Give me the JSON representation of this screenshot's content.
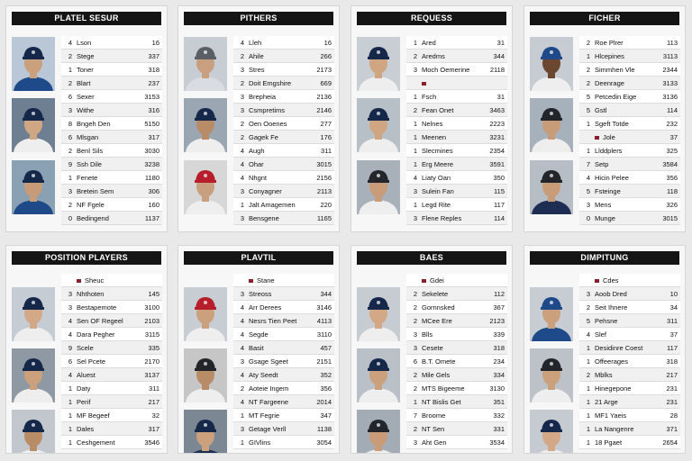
{
  "cards": [
    {
      "title": "PLATEL SESUR",
      "photos": [
        {
          "cap": "#16284a",
          "shirt": "#1e4a8a",
          "bg": "#b9c7d6",
          "skin": "#caa07d"
        },
        {
          "cap": "#16284a",
          "shirt": "#eeeeee",
          "bg": "#6d7f91",
          "skin": "#d0a784"
        },
        {
          "cap": "#16284a",
          "shirt": "#1e4a8a",
          "bg": "#8aa0b3",
          "skin": "#c79b78"
        }
      ],
      "rows": [
        {
          "rank": "4",
          "name": "Lson",
          "stat": "16"
        },
        {
          "rank": "2",
          "name": "Stege",
          "stat": "337"
        },
        {
          "rank": "1",
          "name": "Toner",
          "stat": "318"
        },
        {
          "rank": "2",
          "name": "Blart",
          "stat": "237"
        },
        {
          "rank": "6",
          "name": "Sexer",
          "stat": "3153"
        },
        {
          "rank": "3",
          "name": "Withe",
          "stat": "316"
        },
        {
          "rank": "8",
          "name": "Bngeh Den",
          "stat": "5150"
        },
        {
          "rank": "6",
          "name": "Mlsgan",
          "stat": "317"
        },
        {
          "rank": "2",
          "name": "Benl Sils",
          "stat": "3030"
        },
        {
          "rank": "9",
          "name": "Ssh Dile",
          "stat": "3238"
        },
        {
          "rank": "1",
          "name": "Fenete",
          "stat": "1180"
        },
        {
          "rank": "3",
          "name": "Bretein Sem",
          "stat": "306"
        },
        {
          "rank": "2",
          "name": "NF Fgele",
          "stat": "160"
        },
        {
          "rank": "0",
          "name": "Bedingend",
          "stat": "1137"
        }
      ]
    },
    {
      "title": "PITHERS",
      "photos": [
        {
          "cap": "#5a5f66",
          "shirt": "#d9dde2",
          "bg": "#c8cdd3",
          "skin": "#c9a07f"
        },
        {
          "cap": "#16284a",
          "shirt": "#eeeeee",
          "bg": "#9aa6b2",
          "skin": "#b98c68"
        },
        {
          "cap": "#b51e2a",
          "shirt": "#eeeeee",
          "bg": "#d7d7d7",
          "skin": "#c9a07f"
        }
      ],
      "rows": [
        {
          "rank": "4",
          "name": "Lleh",
          "stat": "16"
        },
        {
          "rank": "2",
          "name": "Ahile",
          "stat": "266"
        },
        {
          "rank": "3",
          "name": "Stres",
          "stat": "2173"
        },
        {
          "rank": "2",
          "name": "Doit Emgshire",
          "stat": "669"
        },
        {
          "rank": "3",
          "name": "Brepheia",
          "stat": "2136"
        },
        {
          "rank": "3",
          "name": "Csmpretims",
          "stat": "2146"
        },
        {
          "rank": "2",
          "name": "Oen Ooenes",
          "stat": "277"
        },
        {
          "rank": "2",
          "name": "Gagek Fe",
          "stat": "176"
        },
        {
          "rank": "4",
          "name": "Augh",
          "stat": "311"
        },
        {
          "rank": "4",
          "name": "Ohar",
          "stat": "3015"
        },
        {
          "rank": "4",
          "name": "Nhgnt",
          "stat": "2156"
        },
        {
          "rank": "3",
          "name": "Conyagner",
          "stat": "2113"
        },
        {
          "rank": "1",
          "name": "Jalt Amagemen",
          "stat": "220"
        },
        {
          "rank": "3",
          "name": "Bensgene",
          "stat": "1165"
        }
      ]
    },
    {
      "title": "REQUESS",
      "photos": [
        {
          "cap": "#16284a",
          "shirt": "#eeeeee",
          "bg": "#c9ced4",
          "skin": "#cfa582"
        },
        {
          "cap": "#16284a",
          "shirt": "#eeeeee",
          "bg": "#b7bfc7",
          "skin": "#cfa582"
        },
        {
          "cap": "#22262b",
          "shirt": "#eeeeee",
          "bg": "#a8b0b9",
          "skin": "#c89c79"
        }
      ],
      "rows": [
        {
          "rank": "1",
          "name": "Ared",
          "stat": "31"
        },
        {
          "rank": "2",
          "name": "Aredms",
          "stat": "344"
        },
        {
          "rank": "3",
          "name": "Moch Oemerine",
          "stat": "2118"
        },
        {
          "rank": "",
          "name": "",
          "stat": "",
          "dot": true
        },
        {
          "rank": "1",
          "name": "Fsch",
          "stat": "31"
        },
        {
          "rank": "2",
          "name": "Fean Onet",
          "stat": "3463"
        },
        {
          "rank": "1",
          "name": "Nelnes",
          "stat": "2223"
        },
        {
          "rank": "1",
          "name": "Meenen",
          "stat": "3231"
        },
        {
          "rank": "1",
          "name": "Slecmines",
          "stat": "2354"
        },
        {
          "rank": "1",
          "name": "Erg Meere",
          "stat": "3591"
        },
        {
          "rank": "4",
          "name": "Liaty Oan",
          "stat": "350"
        },
        {
          "rank": "3",
          "name": "Sulein Fan",
          "stat": "115"
        },
        {
          "rank": "1",
          "name": "Legd Rite",
          "stat": "117"
        },
        {
          "rank": "3",
          "name": "Flene Reples",
          "stat": "114"
        }
      ]
    },
    {
      "title": "FICHER",
      "photos": [
        {
          "cap": "#1e4a8a",
          "shirt": "#eeeeee",
          "bg": "#c6ccd2",
          "skin": "#6b4730"
        },
        {
          "cap": "#22262b",
          "shirt": "#eeeeee",
          "bg": "#a7b1bb",
          "skin": "#c89c79"
        },
        {
          "cap": "#22262b",
          "shirt": "#1e2d52",
          "bg": "#b6bdc5",
          "skin": "#c89c79"
        }
      ],
      "rows": [
        {
          "rank": "2",
          "name": "Roe Plrer",
          "stat": "113"
        },
        {
          "rank": "1",
          "name": "Hlcepines",
          "stat": "3113"
        },
        {
          "rank": "2",
          "name": "Simmhen Vle",
          "stat": "2344"
        },
        {
          "rank": "2",
          "name": "Deenrage",
          "stat": "3133"
        },
        {
          "rank": "5",
          "name": "Petcedin Eige",
          "stat": "3136"
        },
        {
          "rank": "5",
          "name": "Gstl",
          "stat": "114"
        },
        {
          "rank": "1",
          "name": "Sgeft Totde",
          "stat": "232"
        },
        {
          "rank": "",
          "name": "Jole",
          "stat": "37",
          "dot": true
        },
        {
          "rank": "1",
          "name": "Llddplers",
          "stat": "325"
        },
        {
          "rank": "7",
          "name": "Setp",
          "stat": "3584"
        },
        {
          "rank": "4",
          "name": "Hicin Pelee",
          "stat": "356"
        },
        {
          "rank": "5",
          "name": "Fsteinge",
          "stat": "118"
        },
        {
          "rank": "3",
          "name": "Mens",
          "stat": "326"
        },
        {
          "rank": "0",
          "name": "Munge",
          "stat": "3015"
        }
      ]
    },
    {
      "title": "POSITION PLAYERS",
      "photos": [
        {
          "cap": "#16284a",
          "shirt": "#eeeeee",
          "bg": "#c5ccd4",
          "skin": "#d2a886"
        },
        {
          "cap": "#16284a",
          "shirt": "#eeeeee",
          "bg": "#8f99a4",
          "skin": "#caa07d"
        },
        {
          "cap": "#16284a",
          "shirt": "#eeeeee",
          "bg": "#c1c7cd",
          "skin": "#b98c68"
        }
      ],
      "rows": [
        {
          "rank": "",
          "name": "Sheuc",
          "stat": "",
          "dot": true
        },
        {
          "rank": "3",
          "name": "Nhthoten",
          "stat": "145"
        },
        {
          "rank": "3",
          "name": "Bestapemote",
          "stat": "3100"
        },
        {
          "rank": "4",
          "name": "Sen OF Regeel",
          "stat": "2103"
        },
        {
          "rank": "4",
          "name": "Dara Pegher",
          "stat": "3115"
        },
        {
          "rank": "9",
          "name": "Scele",
          "stat": "335"
        },
        {
          "rank": "6",
          "name": "Sel Pcete",
          "stat": "2170"
        },
        {
          "rank": "4",
          "name": "Aluest",
          "stat": "3137"
        },
        {
          "rank": "1",
          "name": "Daty",
          "stat": "311"
        },
        {
          "rank": "1",
          "name": "Perif",
          "stat": "217"
        },
        {
          "rank": "1",
          "name": "MF Begeef",
          "stat": "32"
        },
        {
          "rank": "1",
          "name": "Dales",
          "stat": "317"
        },
        {
          "rank": "1",
          "name": "Ceshgement",
          "stat": "3546"
        }
      ]
    },
    {
      "title": "PLAVTIL",
      "photos": [
        {
          "cap": "#b51e2a",
          "shirt": "#eeeeee",
          "bg": "#c8cdd3",
          "skin": "#caa07d"
        },
        {
          "cap": "#22262b",
          "shirt": "#eeeeee",
          "bg": "#c6c6c6",
          "skin": "#b98c68"
        },
        {
          "cap": "#16284a",
          "shirt": "#1e2d52",
          "bg": "#7b8792",
          "skin": "#caa07d"
        }
      ],
      "rows": [
        {
          "rank": "",
          "name": "Stane",
          "stat": "",
          "dot": true
        },
        {
          "rank": "3",
          "name": "Streoss",
          "stat": "344"
        },
        {
          "rank": "4",
          "name": "Arr Derees",
          "stat": "3146"
        },
        {
          "rank": "4",
          "name": "Nesrs Tien Peet",
          "stat": "4113"
        },
        {
          "rank": "4",
          "name": "Segde",
          "stat": "3110"
        },
        {
          "rank": "4",
          "name": "Basit",
          "stat": "457"
        },
        {
          "rank": "3",
          "name": "Gsage Sgeet",
          "stat": "2151"
        },
        {
          "rank": "4",
          "name": "Aty Seedt",
          "stat": "352"
        },
        {
          "rank": "2",
          "name": "Aoteie Ingem",
          "stat": "356"
        },
        {
          "rank": "4",
          "name": "NT Fargeene",
          "stat": "2014"
        },
        {
          "rank": "1",
          "name": "MT Fegrie",
          "stat": "347"
        },
        {
          "rank": "3",
          "name": "Getage Verll",
          "stat": "1138"
        },
        {
          "rank": "1",
          "name": "GIVlins",
          "stat": "3054"
        }
      ]
    },
    {
      "title": "BAES",
      "photos": [
        {
          "cap": "#16284a",
          "shirt": "#eeeeee",
          "bg": "#c7ccd2",
          "skin": "#d2a886"
        },
        {
          "cap": "#16284a",
          "shirt": "#eeeeee",
          "bg": "#b9c0c7",
          "skin": "#caa07d"
        },
        {
          "cap": "#22262b",
          "shirt": "#eeeeee",
          "bg": "#a3acb5",
          "skin": "#c89c79"
        }
      ],
      "rows": [
        {
          "rank": "",
          "name": "Gdei",
          "stat": "",
          "dot": true
        },
        {
          "rank": "2",
          "name": "Sekelete",
          "stat": "112"
        },
        {
          "rank": "2",
          "name": "Gornnsked",
          "stat": "367"
        },
        {
          "rank": "2",
          "name": "MCee Ere",
          "stat": "2123"
        },
        {
          "rank": "3",
          "name": "Blls",
          "stat": "339"
        },
        {
          "rank": "3",
          "name": "Cesete",
          "stat": "318"
        },
        {
          "rank": "6",
          "name": "B.T. Omete",
          "stat": "234"
        },
        {
          "rank": "2",
          "name": "Mile Gels",
          "stat": "334"
        },
        {
          "rank": "2",
          "name": "MTS Bigeeme",
          "stat": "3130"
        },
        {
          "rank": "1",
          "name": "NT Bislis Get",
          "stat": "351"
        },
        {
          "rank": "7",
          "name": "Broome",
          "stat": "332"
        },
        {
          "rank": "2",
          "name": "NT Sen",
          "stat": "331"
        },
        {
          "rank": "3",
          "name": "Aht Gen",
          "stat": "3534"
        }
      ]
    },
    {
      "title": "DIMPITUNG",
      "photos": [
        {
          "cap": "#1e4a8a",
          "shirt": "#1e4a8a",
          "bg": "#c8cdd3",
          "skin": "#caa07d"
        },
        {
          "cap": "#22262b",
          "shirt": "#eeeeee",
          "bg": "#bcc2c8",
          "skin": "#caa07d"
        },
        {
          "cap": "#16284a",
          "shirt": "#eeeeee",
          "bg": "#c6cbd1",
          "skin": "#d2a886"
        }
      ],
      "rows": [
        {
          "rank": "",
          "name": "Cdes",
          "stat": "",
          "dot": true
        },
        {
          "rank": "3",
          "name": "Aoob Dred",
          "stat": "10"
        },
        {
          "rank": "2",
          "name": "Seit Ihnere",
          "stat": "34"
        },
        {
          "rank": "5",
          "name": "Pehsne",
          "stat": "311"
        },
        {
          "rank": "4",
          "name": "Slef",
          "stat": "37"
        },
        {
          "rank": "1",
          "name": "Desidinre Coest",
          "stat": "117"
        },
        {
          "rank": "1",
          "name": "Offeerages",
          "stat": "318"
        },
        {
          "rank": "2",
          "name": "Mblks",
          "stat": "217"
        },
        {
          "rank": "1",
          "name": "Hinegepone",
          "stat": "231"
        },
        {
          "rank": "1",
          "name": "21 Arge",
          "stat": "231"
        },
        {
          "rank": "1",
          "name": "MF1 Yaeis",
          "stat": "28"
        },
        {
          "rank": "1",
          "name": "La Nangenre",
          "stat": "371"
        },
        {
          "rank": "1",
          "name": "18 Pgaet",
          "stat": "2654"
        }
      ]
    }
  ]
}
